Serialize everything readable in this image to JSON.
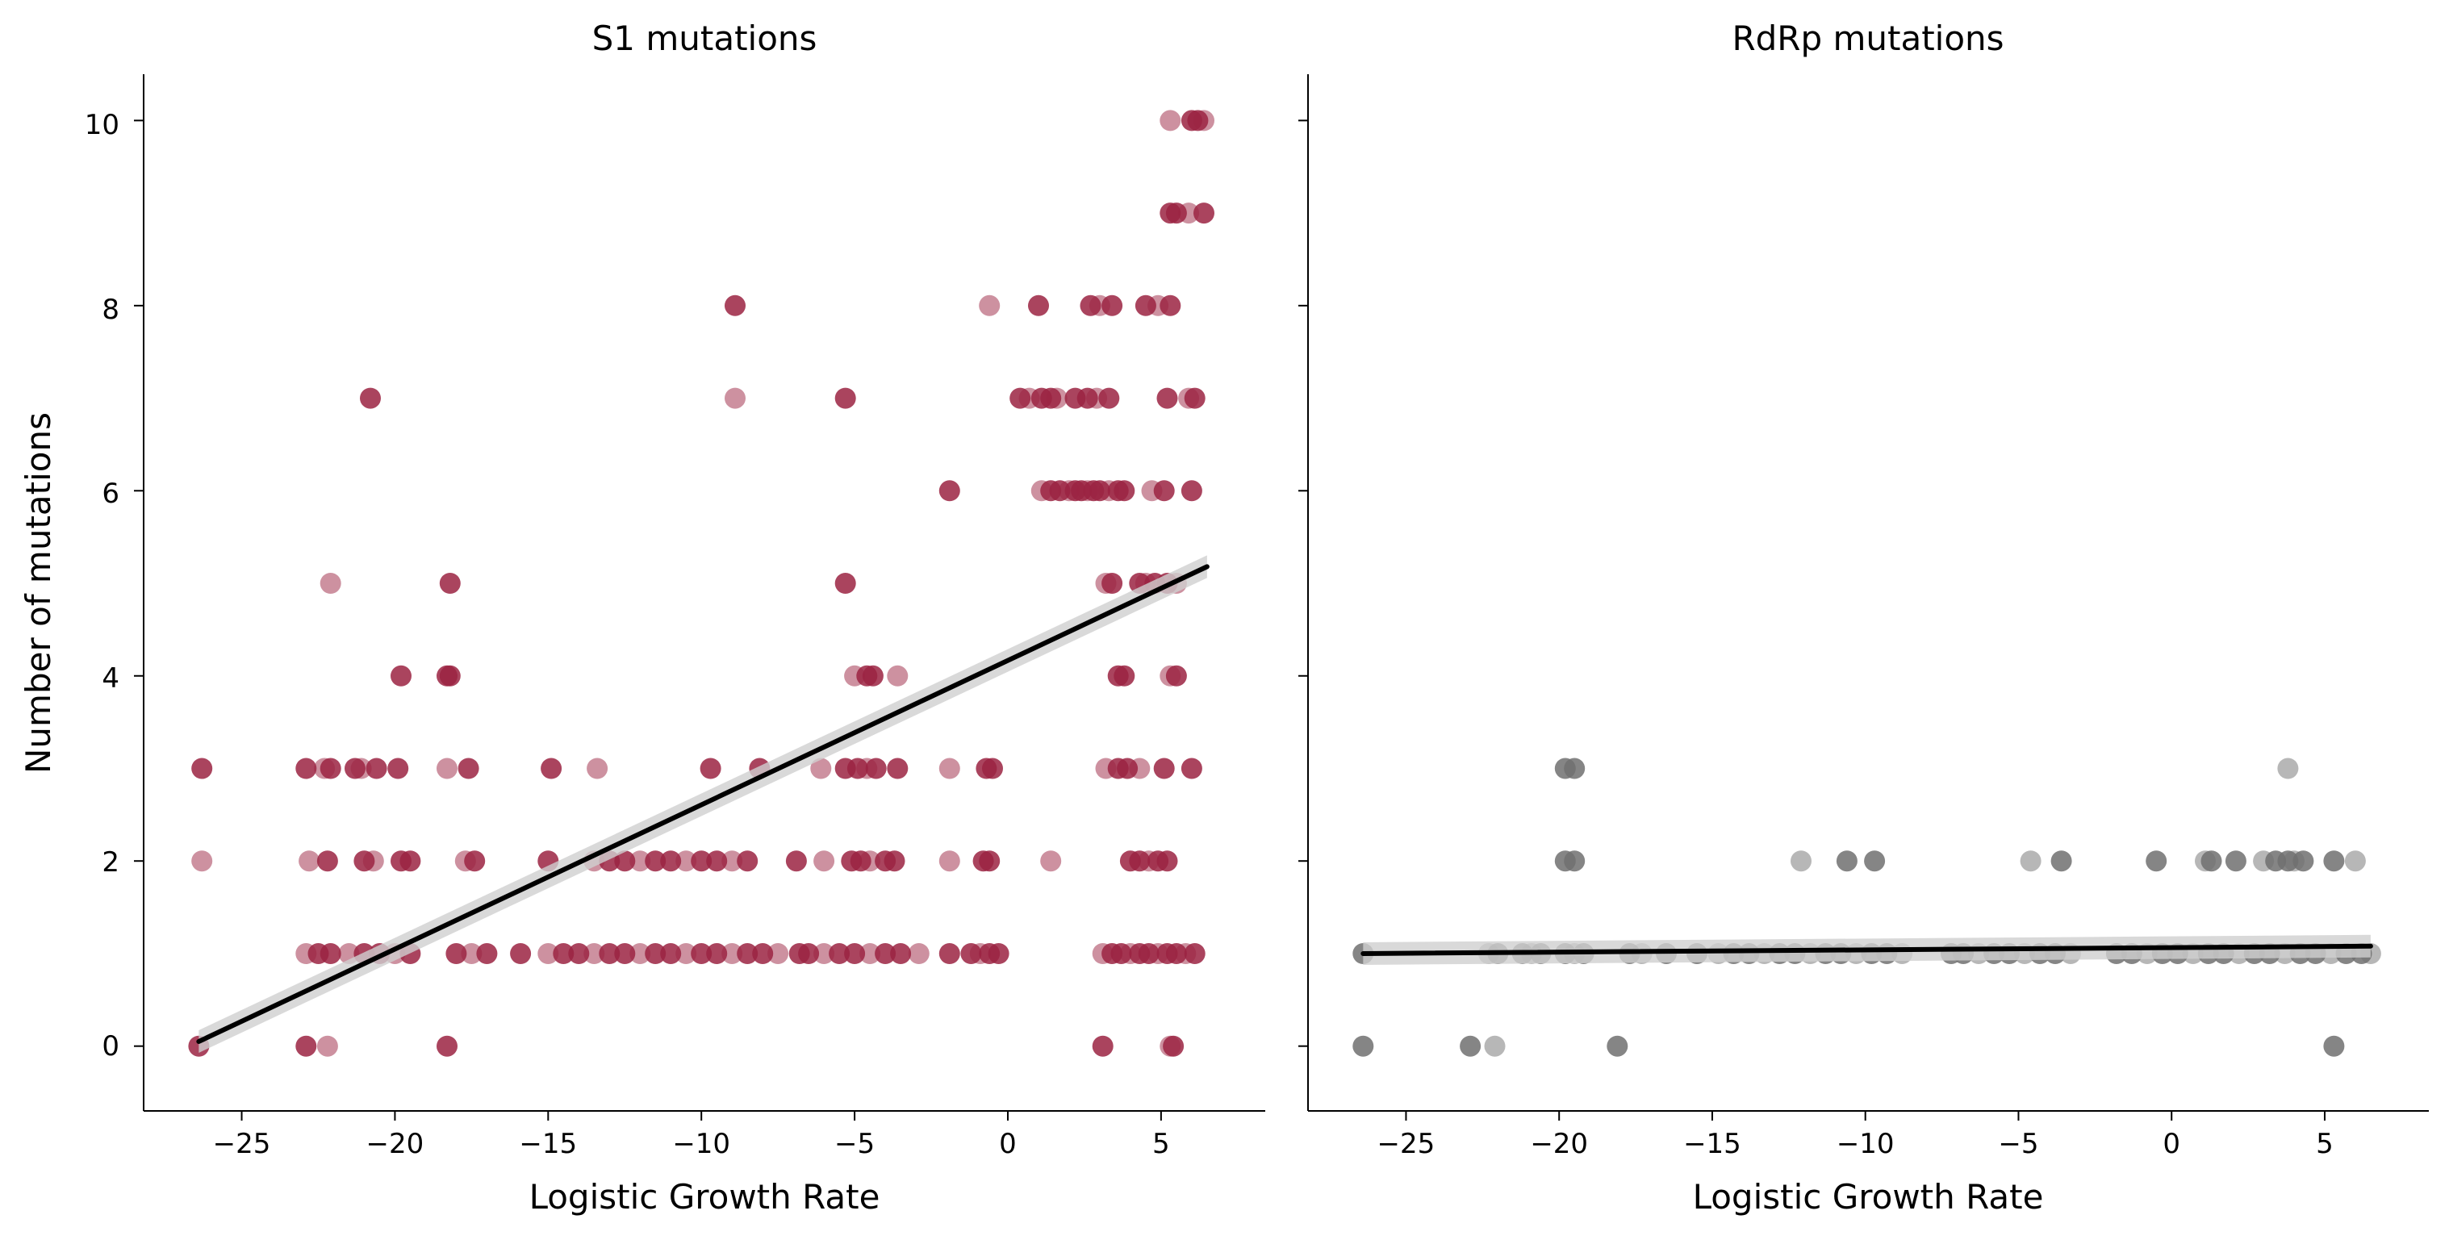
{
  "figure": {
    "ylabel": "Number of mutations",
    "shared_yticks": [
      "0",
      "2",
      "4",
      "6",
      "8",
      "10"
    ]
  },
  "chart_data": [
    {
      "type": "scatter",
      "title": "S1 mutations",
      "xlabel": "Logistic Growth Rate",
      "ylabel": "Number of mutations",
      "xlim": [
        -28.2,
        8.4
      ],
      "ylim": [
        -0.7,
        10.5
      ],
      "xticks": [
        -25,
        -20,
        -15,
        -10,
        -5,
        0,
        5
      ],
      "xtick_labels": [
        "−25",
        "−20",
        "−15",
        "−10",
        "−5",
        "0",
        "5"
      ],
      "yticks": [
        0,
        2,
        4,
        6,
        8,
        10
      ],
      "point_color": "#9b2342",
      "regression": {
        "x": [
          -26.4,
          6.5
        ],
        "y": [
          0.05,
          5.18
        ],
        "ci_color": "#d0d0d0",
        "line_color": "#000000"
      },
      "points": [
        [
          -26.3,
          3
        ],
        [
          -26.3,
          2
        ],
        [
          -26.4,
          0
        ],
        [
          -22.9,
          3
        ],
        [
          -22.3,
          3
        ],
        [
          -22.1,
          3
        ],
        [
          -21.3,
          3
        ],
        [
          -21.1,
          3
        ],
        [
          -20.6,
          3
        ],
        [
          -19.9,
          3
        ],
        [
          -18.3,
          3
        ],
        [
          -17.6,
          3
        ],
        [
          -14.9,
          3
        ],
        [
          -13.4,
          3
        ],
        [
          -9.7,
          3
        ],
        [
          -8.1,
          3
        ],
        [
          -6.1,
          3
        ],
        [
          -5.3,
          3
        ],
        [
          -4.9,
          3
        ],
        [
          -4.6,
          3
        ],
        [
          -4.3,
          3
        ],
        [
          -3.6,
          3
        ],
        [
          -1.9,
          3
        ],
        [
          -0.7,
          3
        ],
        [
          -0.5,
          3
        ],
        [
          3.2,
          3
        ],
        [
          3.6,
          3
        ],
        [
          3.9,
          3
        ],
        [
          4.3,
          3
        ],
        [
          5.1,
          3
        ],
        [
          6.0,
          3
        ],
        [
          -22.8,
          2
        ],
        [
          -22.2,
          2
        ],
        [
          -21.0,
          2
        ],
        [
          -20.7,
          2
        ],
        [
          -19.8,
          2
        ],
        [
          -19.5,
          2
        ],
        [
          -17.7,
          2
        ],
        [
          -17.4,
          2
        ],
        [
          -15.0,
          2
        ],
        [
          -13.5,
          2
        ],
        [
          -13.0,
          2
        ],
        [
          -12.5,
          2
        ],
        [
          -12.0,
          2
        ],
        [
          -11.5,
          2
        ],
        [
          -11.0,
          2
        ],
        [
          -10.5,
          2
        ],
        [
          -10.0,
          2
        ],
        [
          -9.5,
          2
        ],
        [
          -9.0,
          2
        ],
        [
          -8.5,
          2
        ],
        [
          -6.9,
          2
        ],
        [
          -6.0,
          2
        ],
        [
          -5.1,
          2
        ],
        [
          -4.8,
          2
        ],
        [
          -4.5,
          2
        ],
        [
          -4.0,
          2
        ],
        [
          -3.7,
          2
        ],
        [
          -1.9,
          2
        ],
        [
          -0.8,
          2
        ],
        [
          -0.6,
          2
        ],
        [
          1.4,
          2
        ],
        [
          4.0,
          2
        ],
        [
          4.3,
          2
        ],
        [
          4.6,
          2
        ],
        [
          4.9,
          2
        ],
        [
          5.2,
          2
        ],
        [
          -22.9,
          1
        ],
        [
          -22.5,
          1
        ],
        [
          -22.1,
          1
        ],
        [
          -21.5,
          1
        ],
        [
          -21.0,
          1
        ],
        [
          -20.5,
          1
        ],
        [
          -20.0,
          1
        ],
        [
          -19.5,
          1
        ],
        [
          -18.0,
          1
        ],
        [
          -17.5,
          1
        ],
        [
          -17.0,
          1
        ],
        [
          -15.9,
          1
        ],
        [
          -15.0,
          1
        ],
        [
          -14.5,
          1
        ],
        [
          -14.0,
          1
        ],
        [
          -13.5,
          1
        ],
        [
          -13.0,
          1
        ],
        [
          -12.5,
          1
        ],
        [
          -12.0,
          1
        ],
        [
          -11.5,
          1
        ],
        [
          -11.0,
          1
        ],
        [
          -10.5,
          1
        ],
        [
          -10.0,
          1
        ],
        [
          -9.5,
          1
        ],
        [
          -9.0,
          1
        ],
        [
          -8.5,
          1
        ],
        [
          -8.0,
          1
        ],
        [
          -7.5,
          1
        ],
        [
          -6.8,
          1
        ],
        [
          -6.5,
          1
        ],
        [
          -6.0,
          1
        ],
        [
          -5.5,
          1
        ],
        [
          -5.0,
          1
        ],
        [
          -4.5,
          1
        ],
        [
          -4.0,
          1
        ],
        [
          -3.5,
          1
        ],
        [
          -2.9,
          1
        ],
        [
          -1.9,
          1
        ],
        [
          -1.2,
          1
        ],
        [
          -0.9,
          1
        ],
        [
          -0.6,
          1
        ],
        [
          -0.3,
          1
        ],
        [
          3.1,
          1
        ],
        [
          3.4,
          1
        ],
        [
          3.7,
          1
        ],
        [
          4.0,
          1
        ],
        [
          4.3,
          1
        ],
        [
          4.6,
          1
        ],
        [
          4.9,
          1
        ],
        [
          5.2,
          1
        ],
        [
          5.5,
          1
        ],
        [
          5.8,
          1
        ],
        [
          6.1,
          1
        ],
        [
          -22.9,
          0
        ],
        [
          -22.2,
          0
        ],
        [
          -18.3,
          0
        ],
        [
          3.1,
          0
        ],
        [
          5.3,
          0
        ],
        [
          5.4,
          0
        ],
        [
          -8.9,
          8
        ],
        [
          -0.6,
          8
        ],
        [
          1.0,
          8
        ],
        [
          2.7,
          8
        ],
        [
          3.0,
          8
        ],
        [
          3.4,
          8
        ],
        [
          4.5,
          8
        ],
        [
          4.9,
          8
        ],
        [
          5.3,
          8
        ],
        [
          -20.8,
          7
        ],
        [
          -8.9,
          7
        ],
        [
          -5.3,
          7
        ],
        [
          0.4,
          7
        ],
        [
          0.7,
          7
        ],
        [
          1.1,
          7
        ],
        [
          1.4,
          7
        ],
        [
          1.6,
          7
        ],
        [
          2.2,
          7
        ],
        [
          2.6,
          7
        ],
        [
          2.9,
          7
        ],
        [
          3.3,
          7
        ],
        [
          5.2,
          7
        ],
        [
          5.9,
          7
        ],
        [
          6.1,
          7
        ],
        [
          -1.9,
          6
        ],
        [
          1.1,
          6
        ],
        [
          1.4,
          6
        ],
        [
          1.7,
          6
        ],
        [
          2.0,
          6
        ],
        [
          2.2,
          6
        ],
        [
          2.4,
          6
        ],
        [
          2.6,
          6
        ],
        [
          2.8,
          6
        ],
        [
          3.0,
          6
        ],
        [
          3.3,
          6
        ],
        [
          3.6,
          6
        ],
        [
          3.8,
          6
        ],
        [
          4.7,
          6
        ],
        [
          5.1,
          6
        ],
        [
          6.0,
          6
        ],
        [
          -22.1,
          5
        ],
        [
          -18.2,
          5
        ],
        [
          -5.3,
          5
        ],
        [
          3.2,
          5
        ],
        [
          3.4,
          5
        ],
        [
          4.3,
          5
        ],
        [
          4.5,
          5
        ],
        [
          4.8,
          5
        ],
        [
          5.2,
          5
        ],
        [
          5.5,
          5
        ],
        [
          -19.8,
          4
        ],
        [
          -18.2,
          4
        ],
        [
          -5.0,
          4
        ],
        [
          -4.6,
          4
        ],
        [
          -4.4,
          4
        ],
        [
          -3.6,
          4
        ],
        [
          3.6,
          4
        ],
        [
          3.8,
          4
        ],
        [
          5.3,
          4
        ],
        [
          5.5,
          4
        ],
        [
          -18.3,
          4
        ],
        [
          5.3,
          10
        ],
        [
          6.0,
          10
        ],
        [
          6.2,
          10
        ],
        [
          6.4,
          10
        ],
        [
          5.3,
          9
        ],
        [
          5.5,
          9
        ],
        [
          5.9,
          9
        ],
        [
          6.4,
          9
        ]
      ]
    },
    {
      "type": "scatter",
      "title": "RdRp mutations",
      "xlabel": "Logistic Growth Rate",
      "ylabel": "",
      "xlim": [
        -28.2,
        8.4
      ],
      "ylim": [
        -0.7,
        10.5
      ],
      "xticks": [
        -25,
        -20,
        -15,
        -10,
        -5,
        0,
        5
      ],
      "xtick_labels": [
        "−25",
        "−20",
        "−15",
        "−10",
        "−5",
        "0",
        "5"
      ],
      "yticks": [
        0,
        2,
        4,
        6,
        8,
        10
      ],
      "point_color": "#707070",
      "regression": {
        "x": [
          -26.4,
          6.5
        ],
        "y": [
          1.0,
          1.08
        ],
        "ci_color": "#d0d0d0",
        "line_color": "#000000"
      },
      "points": [
        [
          -26.4,
          1
        ],
        [
          -22.3,
          1
        ],
        [
          -22.0,
          1
        ],
        [
          -21.2,
          1
        ],
        [
          -20.9,
          1
        ],
        [
          -20.6,
          1
        ],
        [
          -19.8,
          1
        ],
        [
          -19.5,
          1
        ],
        [
          -19.2,
          1
        ],
        [
          -17.7,
          1
        ],
        [
          -17.3,
          1
        ],
        [
          -16.5,
          1
        ],
        [
          -15.5,
          1
        ],
        [
          -14.8,
          1
        ],
        [
          -14.3,
          1
        ],
        [
          -13.8,
          1
        ],
        [
          -13.3,
          1
        ],
        [
          -12.8,
          1
        ],
        [
          -12.3,
          1
        ],
        [
          -11.8,
          1
        ],
        [
          -11.3,
          1
        ],
        [
          -10.8,
          1
        ],
        [
          -10.3,
          1
        ],
        [
          -9.8,
          1
        ],
        [
          -9.3,
          1
        ],
        [
          -8.8,
          1
        ],
        [
          -7.2,
          1
        ],
        [
          -6.8,
          1
        ],
        [
          -6.3,
          1
        ],
        [
          -5.8,
          1
        ],
        [
          -5.3,
          1
        ],
        [
          -4.8,
          1
        ],
        [
          -4.3,
          1
        ],
        [
          -3.8,
          1
        ],
        [
          -3.3,
          1
        ],
        [
          -1.8,
          1
        ],
        [
          -1.3,
          1
        ],
        [
          -0.8,
          1
        ],
        [
          -0.3,
          1
        ],
        [
          0.2,
          1
        ],
        [
          0.7,
          1
        ],
        [
          1.2,
          1
        ],
        [
          1.7,
          1
        ],
        [
          2.2,
          1
        ],
        [
          2.7,
          1
        ],
        [
          3.2,
          1
        ],
        [
          3.7,
          1
        ],
        [
          4.2,
          1
        ],
        [
          4.7,
          1
        ],
        [
          5.2,
          1
        ],
        [
          5.7,
          1
        ],
        [
          6.2,
          1
        ],
        [
          6.5,
          1
        ],
        [
          -19.8,
          3
        ],
        [
          -19.5,
          3
        ],
        [
          3.8,
          3
        ],
        [
          -19.8,
          2
        ],
        [
          -19.5,
          2
        ],
        [
          -12.1,
          2
        ],
        [
          -10.6,
          2
        ],
        [
          -9.7,
          2
        ],
        [
          -4.6,
          2
        ],
        [
          -3.6,
          2
        ],
        [
          -0.5,
          2
        ],
        [
          1.1,
          2
        ],
        [
          1.3,
          2
        ],
        [
          2.1,
          2
        ],
        [
          3.0,
          2
        ],
        [
          3.4,
          2
        ],
        [
          3.8,
          2
        ],
        [
          4.0,
          2
        ],
        [
          4.3,
          2
        ],
        [
          5.3,
          2
        ],
        [
          6.0,
          2
        ],
        [
          -26.4,
          0
        ],
        [
          -22.9,
          0
        ],
        [
          -22.1,
          0
        ],
        [
          -18.1,
          0
        ],
        [
          5.3,
          0
        ]
      ]
    }
  ]
}
